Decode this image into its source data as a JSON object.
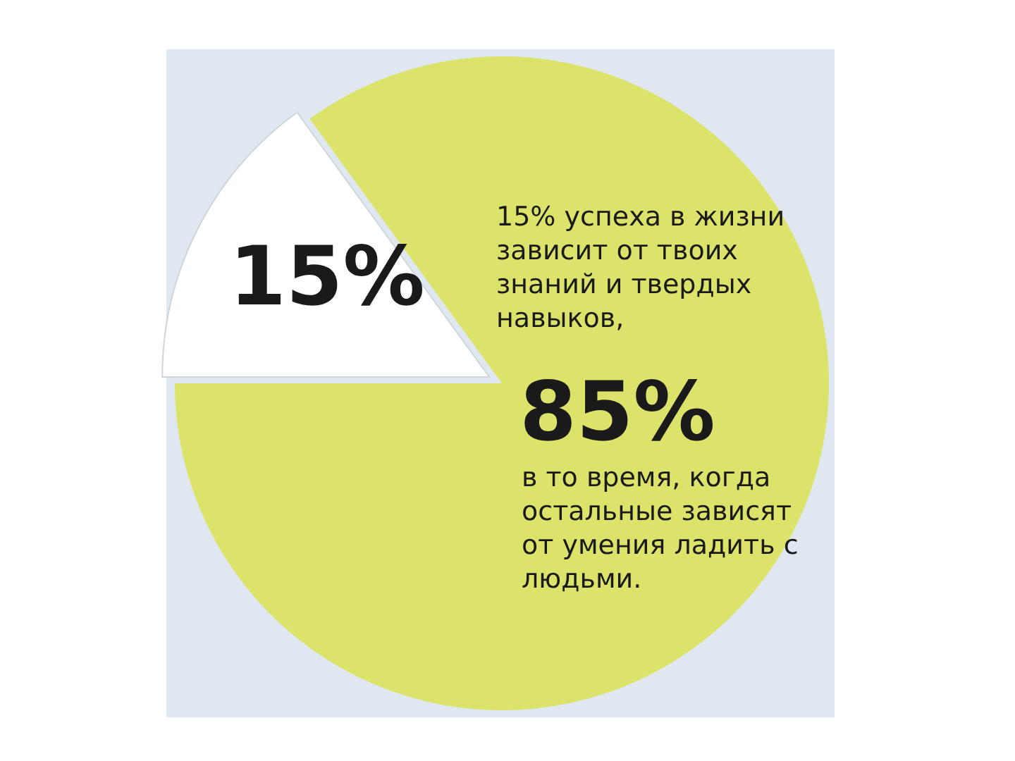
{
  "chart_data": {
    "type": "pie",
    "categories": [
      null,
      null
    ],
    "values": [
      85,
      15
    ],
    "colors": [
      "#dce36a",
      "#ffffff"
    ],
    "value_labels": [
      "85%",
      "15%"
    ],
    "annotations": [
      "15% успеха в жизни зависит от твоих знаний и твердых навыков,",
      "в то время, когда остальные зависят от умения ладить с людьми."
    ]
  }
}
